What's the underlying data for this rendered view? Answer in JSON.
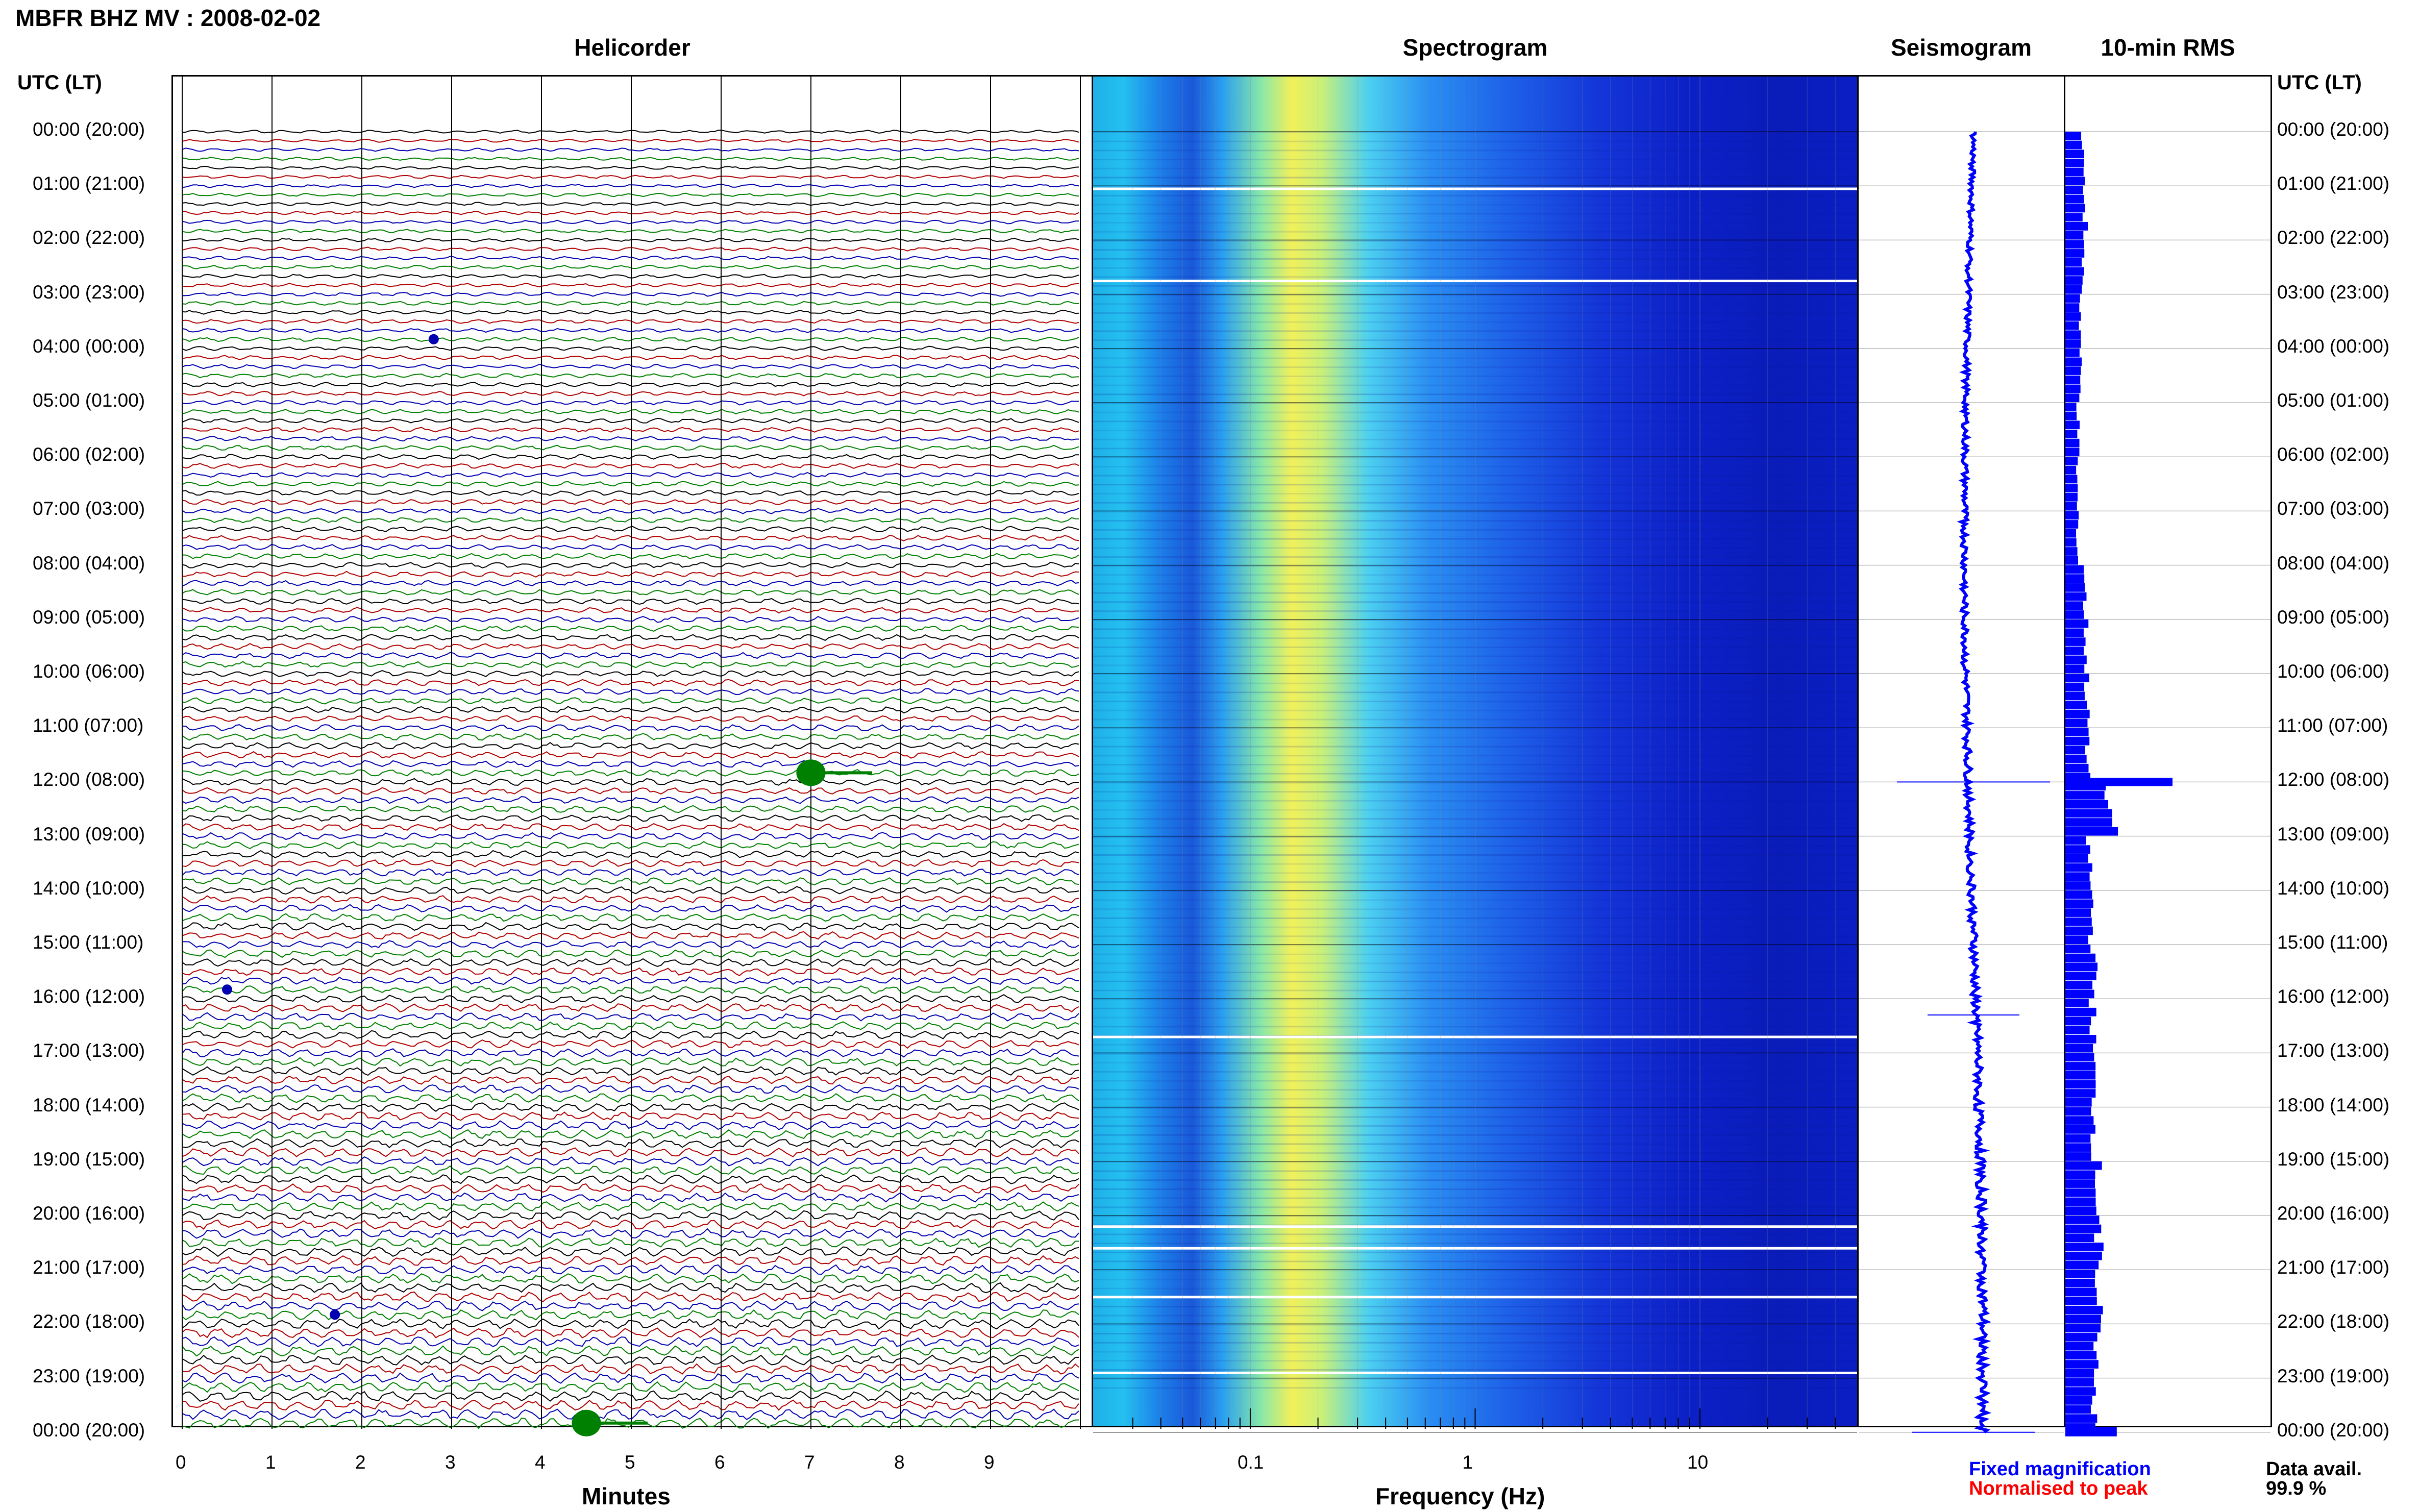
{
  "header": {
    "station": "MBFR BHZ MV : 2008-02-02",
    "left_axis_heading": "UTC (LT)",
    "right_axis_heading": "UTC (LT)"
  },
  "panels": {
    "helicorder": "Helicorder",
    "spectrogram": "Spectrogram",
    "seismogram": "Seismogram",
    "rms": "10-min RMS"
  },
  "time_labels": [
    "00:00 (20:00)",
    "01:00 (21:00)",
    "02:00 (22:00)",
    "03:00 (23:00)",
    "04:00 (00:00)",
    "05:00 (01:00)",
    "06:00 (02:00)",
    "07:00 (03:00)",
    "08:00 (04:00)",
    "09:00 (05:00)",
    "10:00 (06:00)",
    "11:00 (07:00)",
    "12:00 (08:00)",
    "13:00 (09:00)",
    "14:00 (10:00)",
    "15:00 (11:00)",
    "16:00 (12:00)",
    "17:00 (13:00)",
    "18:00 (14:00)",
    "19:00 (15:00)",
    "20:00 (16:00)",
    "21:00 (17:00)",
    "22:00 (18:00)",
    "23:00 (19:00)",
    "00:00 (20:00)"
  ],
  "helicorder_axis": {
    "label": "Minutes",
    "ticks": [
      "0",
      "1",
      "2",
      "3",
      "4",
      "5",
      "6",
      "7",
      "8",
      "9"
    ]
  },
  "spectrogram_axis": {
    "label": "Frequency (Hz)",
    "ticks": [
      "0.1",
      "1",
      "10"
    ]
  },
  "legend": {
    "fixed": "Fixed magnification",
    "normalised": "Normalised to peak",
    "fixed_color": "#0000ff",
    "normalised_color": "#ff0000"
  },
  "data_availability": {
    "label": "Data avail.",
    "value": "99.9 %"
  },
  "chart_data": [
    {
      "type": "line",
      "panel": "Helicorder",
      "xlabel": "Minutes",
      "x_ticks": [
        0,
        1,
        2,
        3,
        4,
        5,
        6,
        7,
        8,
        9
      ],
      "trace_colors": [
        "#000000",
        "#b00000",
        "#0000b0",
        "#008000"
      ],
      "rows_per_hour": 6,
      "events": [
        {
          "hour": 11,
          "minute": 7.0,
          "color": "#008000",
          "size": "large"
        },
        {
          "hour": 23,
          "minute": 4.5,
          "color": "#008000",
          "size": "large"
        },
        {
          "hour": 21,
          "minute": 1.7,
          "color": "#0000b0",
          "size": "small"
        },
        {
          "hour": 3,
          "minute": 2.8,
          "color": "#0000b0",
          "size": "small"
        },
        {
          "hour": 15,
          "minute": 0.5,
          "color": "#0000b0",
          "size": "small"
        }
      ]
    },
    {
      "type": "heatmap",
      "panel": "Spectrogram",
      "xlabel": "Frequency (Hz)",
      "x_scale": "log",
      "x_ticks": [
        0.1,
        1,
        10
      ],
      "xlim": [
        0.02,
        50
      ],
      "peak_band_hz": 0.2,
      "gap_hours": [
        1.05,
        2.75,
        16.7,
        20.2,
        20.6,
        21.5,
        22.9
      ]
    },
    {
      "type": "line",
      "panel": "Seismogram",
      "spikes_hour": [
        12.0,
        16.3,
        24.0
      ]
    },
    {
      "type": "bar",
      "panel": "10-min RMS",
      "orientation": "horizontal",
      "hours": [
        0,
        1,
        2,
        3,
        4,
        5,
        6,
        7,
        8,
        9,
        10,
        11,
        12,
        13,
        14,
        15,
        16,
        17,
        18,
        19,
        20,
        21,
        22,
        23
      ],
      "values": [
        0.38,
        0.42,
        0.36,
        0.31,
        0.3,
        0.26,
        0.24,
        0.26,
        0.4,
        0.42,
        0.44,
        0.48,
        0.95,
        0.5,
        0.54,
        0.58,
        0.56,
        0.58,
        0.6,
        0.66,
        0.7,
        0.72,
        0.66,
        0.62
      ],
      "peak": {
        "hour": 12.0,
        "value": 1.0
      },
      "bar_color": "#0000ff"
    }
  ]
}
